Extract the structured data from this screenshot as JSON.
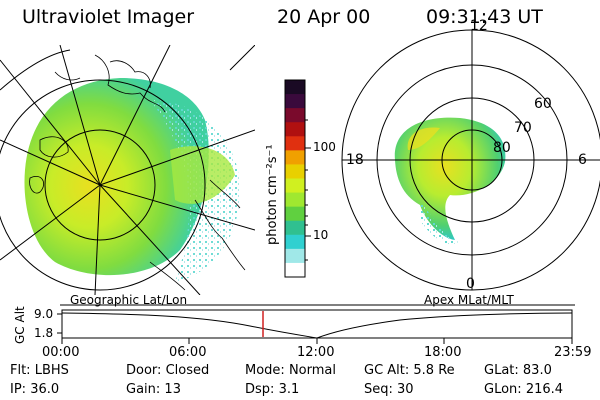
{
  "header": {
    "instrument": "Ultraviolet Imager",
    "date": "20 Apr 00",
    "time": "09:31:43 UT"
  },
  "maps": {
    "left_caption": "Geographic Lat/Lon",
    "right_caption": "Apex MLat/MLT",
    "mlt_labels": [
      "12",
      "18",
      "6",
      "0"
    ],
    "mlat_labels": [
      "60",
      "70",
      "80"
    ]
  },
  "colorbar": {
    "unit_label": "photon cm⁻²s⁻¹",
    "ticks": [
      "100",
      "10"
    ],
    "colors": [
      "#1a0a24",
      "#3a0a3c",
      "#7a0a2c",
      "#b01010",
      "#e03010",
      "#f0a000",
      "#e8d000",
      "#d0f020",
      "#a0e830",
      "#60d040",
      "#30c090",
      "#30d0d0",
      "#a0e8e8",
      "#ffffff"
    ]
  },
  "altitude_plot": {
    "axis_label": "GC Alt",
    "y_ticks": [
      "9.0",
      "1.8"
    ],
    "x_ticks": [
      "00:00",
      "06:00",
      "12:00",
      "18:00",
      "23:59"
    ],
    "current_marker_time": "09:31"
  },
  "status": {
    "row1": [
      {
        "label": "Flt:",
        "value": "LBHS"
      },
      {
        "label": "Door:",
        "value": "Closed"
      },
      {
        "label": "Mode:",
        "value": "Normal"
      },
      {
        "label": "GC Alt:",
        "value": "5.8 Re"
      },
      {
        "label": "GLat:",
        "value": "83.0"
      }
    ],
    "row2": [
      {
        "label": "IP:",
        "value": "36.0"
      },
      {
        "label": "Gain:",
        "value": "13"
      },
      {
        "label": "Dsp:",
        "value": "3.1"
      },
      {
        "label": "Seq:",
        "value": "30"
      },
      {
        "label": "GLon:",
        "value": "216.4"
      }
    ]
  }
}
